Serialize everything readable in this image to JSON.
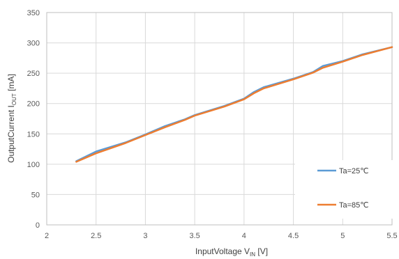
{
  "chart_data": {
    "type": "line",
    "xlabel": "InputVoltage V",
    "xlabel_sub": "IN",
    "xlabel_unit": " [V]",
    "ylabel": "OutputCurrent I",
    "ylabel_sub": "OUT",
    "ylabel_unit": " [mA]",
    "xlim": [
      2,
      5.5
    ],
    "ylim": [
      0,
      350
    ],
    "xticks": [
      "2",
      "2.5",
      "3",
      "3.5",
      "4",
      "4.5",
      "5",
      "5.5"
    ],
    "yticks": [
      "0",
      "50",
      "100",
      "150",
      "200",
      "250",
      "300",
      "350"
    ],
    "grid": true,
    "legend_position": "bottom-right",
    "series": [
      {
        "name": "Ta=25℃",
        "color": "#5B9BD5",
        "x": [
          2.3,
          2.5,
          2.8,
          3.0,
          3.2,
          3.4,
          3.5,
          3.8,
          4.0,
          4.1,
          4.2,
          4.5,
          4.7,
          4.8,
          5.0,
          5.2,
          5.5
        ],
        "y": [
          105,
          121,
          136,
          149,
          163,
          174,
          181,
          196,
          208,
          219,
          227,
          241,
          252,
          262,
          270,
          281,
          293
        ]
      },
      {
        "name": "Ta=85℃",
        "color": "#ED7D31",
        "x": [
          2.3,
          2.5,
          2.8,
          3.0,
          3.2,
          3.4,
          3.5,
          3.8,
          4.0,
          4.1,
          4.2,
          4.5,
          4.7,
          4.8,
          5.0,
          5.2,
          5.5
        ],
        "y": [
          104,
          118,
          135,
          148,
          161,
          173,
          180,
          195,
          207,
          217,
          225,
          240,
          251,
          259,
          269,
          280,
          293
        ]
      }
    ]
  }
}
